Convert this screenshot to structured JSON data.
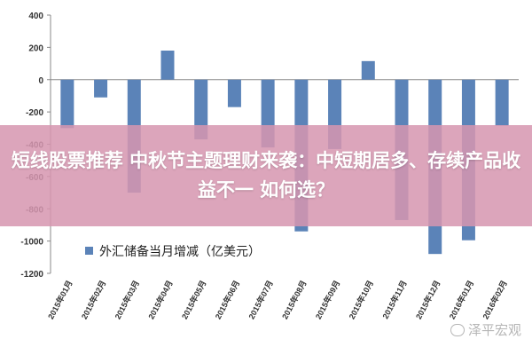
{
  "chart_data": {
    "type": "bar",
    "categories": [
      "2015年01月",
      "2015年02月",
      "2015年03月",
      "2015年04月",
      "2015年05月",
      "2015年06月",
      "2015年07月",
      "2015年08月",
      "2015年09月",
      "2015年10月",
      "2015年11月",
      "2015年12月",
      "2016年01月",
      "2016年02月"
    ],
    "series": [
      {
        "name": "外汇储备当月增减（亿美元）",
        "values": [
          -300,
          -110,
          -700,
          180,
          -370,
          -170,
          -420,
          -940,
          -430,
          115,
          -870,
          -1080,
          -995,
          -285
        ],
        "color": "#5b83b8"
      }
    ],
    "yticks": [
      "400",
      "200",
      "0",
      "-200",
      "-400",
      "-600",
      "-800",
      "-1000",
      "-1200"
    ],
    "ylim": [
      -1200,
      400
    ],
    "grid": false,
    "legend": "bottom-left"
  },
  "headline": "短线股票推荐 中秋节主题理财来袭：中短期居多、存续产品收益不一 如何选？",
  "watermark": "泽平宏观"
}
